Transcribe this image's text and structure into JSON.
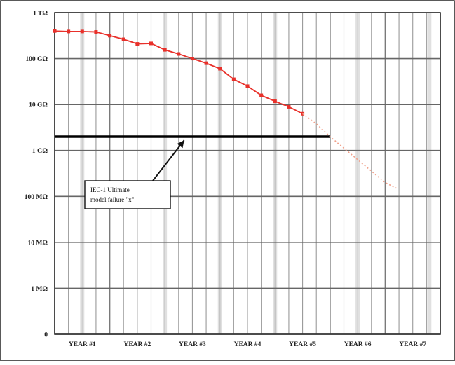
{
  "chart_data": {
    "type": "line",
    "title": "",
    "xlabel": "",
    "ylabel": "",
    "y_scale": "categorical-log",
    "y_ticks": [
      "1 TΩ",
      "100 GΩ",
      "10 GΩ",
      "1 GΩ",
      "100 MΩ",
      "10 MΩ",
      "1 MΩ",
      "0"
    ],
    "x_ticks": [
      "YEAR #1",
      "YEAR #2",
      "YEAR #3",
      "YEAR #4",
      "YEAR #5",
      "YEAR #6",
      "YEAR #7"
    ],
    "grid": true,
    "series": [
      {
        "color": "#e8302a",
        "style": "solid-with-markers",
        "points": [
          [
            0.0,
            0.4
          ],
          [
            0.25,
            0.41
          ],
          [
            0.5,
            0.41
          ],
          [
            0.75,
            0.42
          ],
          [
            1.0,
            0.5
          ],
          [
            1.25,
            0.58
          ],
          [
            1.5,
            0.68
          ],
          [
            1.75,
            0.67
          ],
          [
            2.0,
            0.81
          ],
          [
            2.25,
            0.9
          ],
          [
            2.5,
            1.0
          ],
          [
            2.75,
            1.1
          ],
          [
            3.0,
            1.22
          ],
          [
            3.25,
            1.45
          ],
          [
            3.5,
            1.6
          ],
          [
            3.75,
            1.8
          ],
          [
            4.0,
            1.93
          ],
          [
            4.25,
            2.05
          ],
          [
            4.5,
            2.2
          ]
        ]
      },
      {
        "color": "#f0a08a",
        "style": "dotted",
        "points": [
          [
            4.5,
            2.2
          ],
          [
            4.75,
            2.42
          ],
          [
            5.0,
            2.7
          ],
          [
            5.25,
            2.95
          ],
          [
            5.5,
            3.2
          ],
          [
            5.75,
            3.45
          ],
          [
            6.0,
            3.7
          ],
          [
            6.2,
            3.82
          ]
        ]
      }
    ],
    "threshold": {
      "y": 2.7,
      "x_end": 5.0,
      "color": "#000000"
    },
    "annotation": {
      "text_lines": [
        "IEC-1 Ultimate",
        "model failure \"x\""
      ],
      "arrow_to": [
        2.35,
        2.78
      ]
    }
  }
}
